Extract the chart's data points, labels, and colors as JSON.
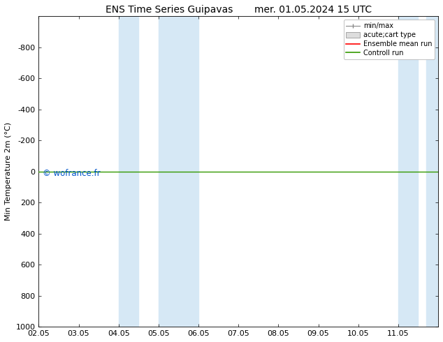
{
  "title_left": "ENS Time Series Guipavas",
  "title_right": "mer. 01.05.2024 15 UTC",
  "ylabel": "Min Temperature 2m (°C)",
  "ylim_bottom": 1000,
  "ylim_top": -1000,
  "xlim": [
    0,
    10
  ],
  "xtick_labels": [
    "02.05",
    "03.05",
    "04.05",
    "05.05",
    "06.05",
    "07.05",
    "08.05",
    "09.05",
    "10.05",
    "11.05"
  ],
  "xtick_positions": [
    0,
    1,
    2,
    3,
    4,
    5,
    6,
    7,
    8,
    9
  ],
  "ytick_values": [
    -800,
    -600,
    -400,
    -200,
    0,
    200,
    400,
    600,
    800,
    1000
  ],
  "shade_regions": [
    [
      2.0,
      2.5
    ],
    [
      3.0,
      4.0
    ],
    [
      9.0,
      9.5
    ],
    [
      9.7,
      10.5
    ]
  ],
  "shade_color": "#d6e8f5",
  "green_line_y": 0,
  "green_line_color": "#339900",
  "watermark": "© wofrance.fr",
  "watermark_color": "#0055cc",
  "legend_labels": [
    "min/max",
    "acute;cart type",
    "Ensemble mean run",
    "Controll run"
  ],
  "background_color": "#ffffff",
  "title_fontsize": 10,
  "axis_fontsize": 8,
  "tick_fontsize": 8
}
